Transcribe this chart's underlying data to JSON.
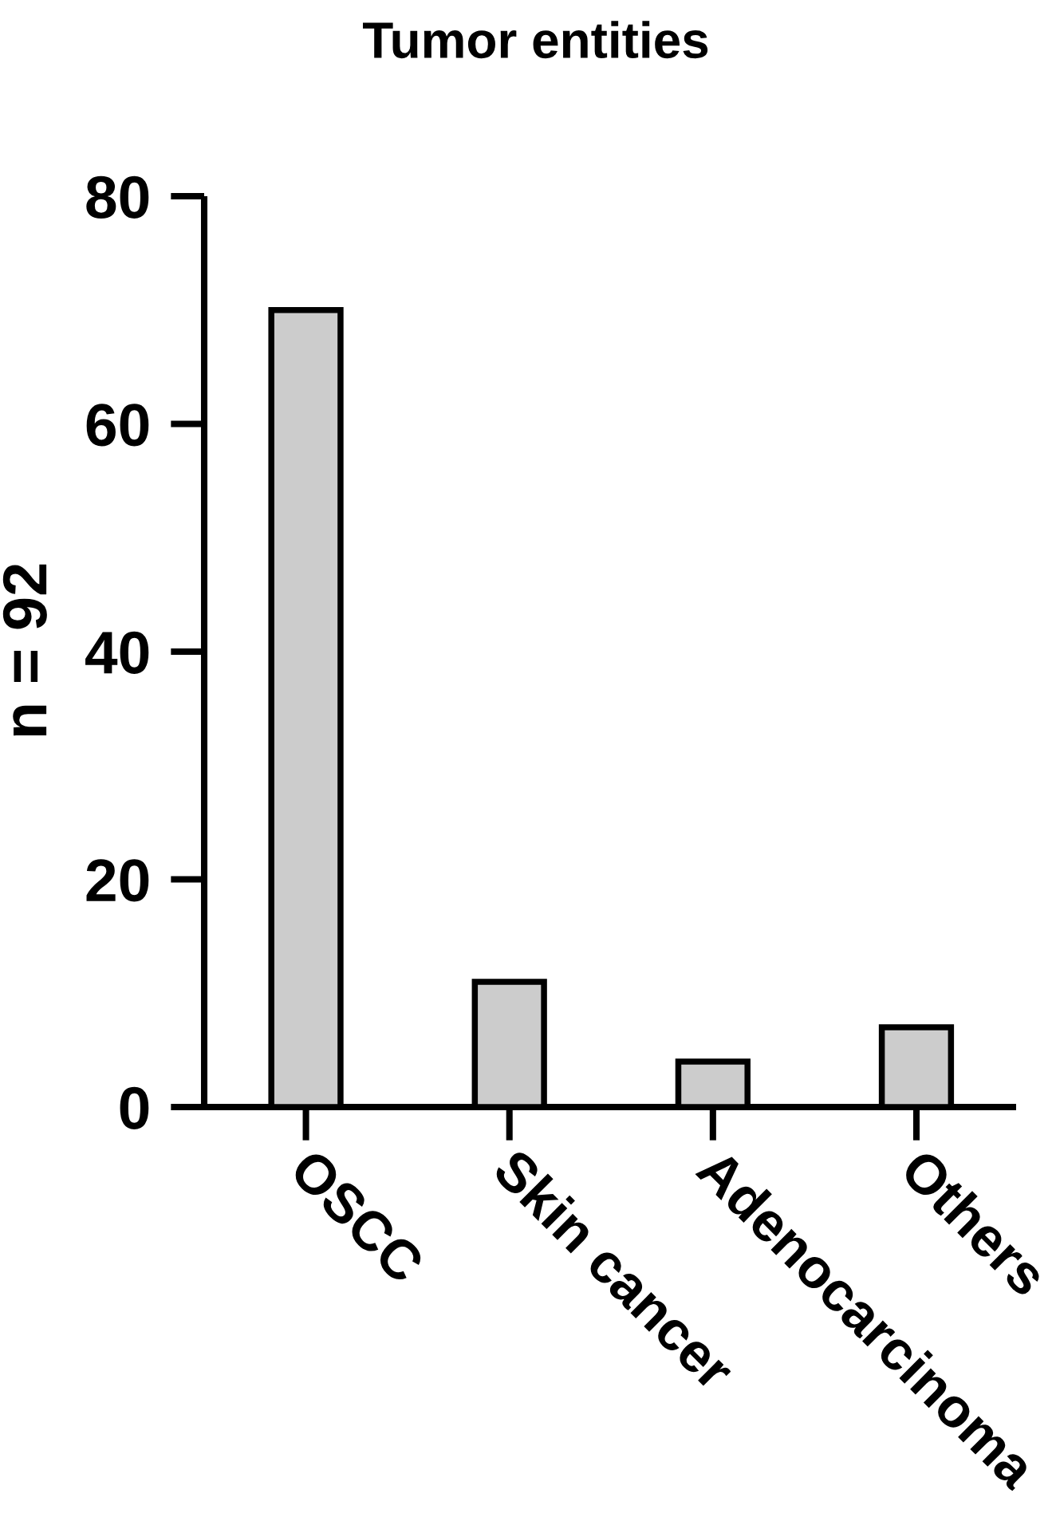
{
  "chart_data": {
    "type": "bar",
    "title": "Tumor entities",
    "ylabel": "n = 92",
    "categories": [
      "OSCC",
      "Skin cancer",
      "Adenocarcinoma",
      "Others"
    ],
    "values": [
      70,
      11,
      4,
      7
    ],
    "color": "#cccccc",
    "ylim": [
      0,
      80
    ],
    "yticks": [
      0,
      20,
      40,
      60,
      80
    ]
  }
}
